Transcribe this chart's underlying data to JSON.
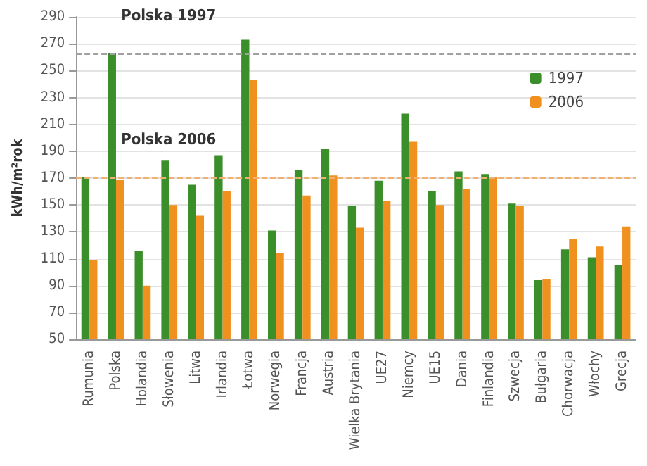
{
  "chart_data": {
    "type": "bar",
    "ylabel": "kWh/m²rok",
    "categories": [
      "Rumunia",
      "Polska",
      "Holandia",
      "Słowenia",
      "Litwa",
      "Irlandia",
      "Łotwa",
      "Norwegia",
      "Francja",
      "Austria",
      "Wielka Brytania",
      "UE27",
      "Niemcy",
      "UE15",
      "Dania",
      "Finlandia",
      "Szwecja",
      "Bułgaria",
      "Chorwacja",
      "Włochy",
      "Grecja"
    ],
    "series": [
      {
        "name": "1997",
        "color": "#3a8f2a",
        "values": [
          171,
          263,
          116,
          183,
          165,
          187,
          273,
          131,
          176,
          192,
          149,
          168,
          218,
          160,
          175,
          173,
          151,
          94,
          117,
          111,
          105
        ]
      },
      {
        "name": "2006",
        "color": "#f0901e",
        "values": [
          109,
          169,
          90,
          150,
          142,
          160,
          243,
          114,
          157,
          172,
          133,
          153,
          197,
          150,
          162,
          171,
          149,
          95,
          125,
          119,
          134
        ]
      }
    ],
    "ylim": [
      50,
      290
    ],
    "yticks": [
      50,
      70,
      90,
      110,
      130,
      150,
      170,
      190,
      210,
      230,
      250,
      270,
      290
    ],
    "grid": "y",
    "legend": "top right",
    "ref_lines": [
      {
        "axis": "y",
        "value": 262,
        "label": "Polska 1997",
        "color": "#a0a0a0",
        "line_style": "dashed"
      },
      {
        "axis": "y",
        "value": 170,
        "label": "Polska 2006",
        "color": "#f0b070",
        "line_style": "dashed"
      }
    ]
  }
}
